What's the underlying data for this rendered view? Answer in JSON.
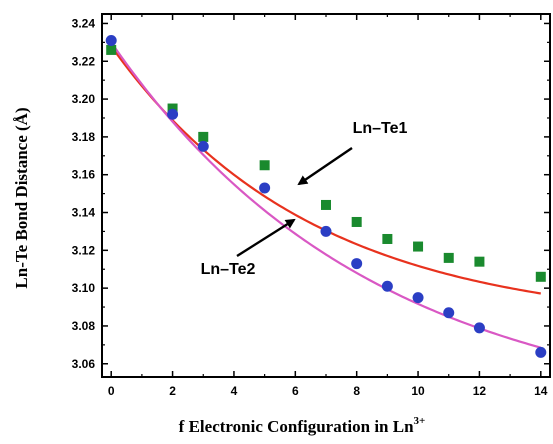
{
  "chart_data": {
    "type": "scatter",
    "title": "",
    "xlabel": "f Electronic Configuration in Ln",
    "xlabel_sup": "3+",
    "ylabel": "Ln-Te Bond Distance (Å)",
    "xlim": [
      -0.3,
      14.3
    ],
    "ylim": [
      3.053,
      3.245
    ],
    "xticks": [
      0,
      2,
      4,
      6,
      8,
      10,
      12,
      14
    ],
    "xtick_labels": [
      "0",
      "2",
      "4",
      "6",
      "8",
      "10",
      "12",
      "14"
    ],
    "yticks": [
      3.06,
      3.08,
      3.1,
      3.12,
      3.14,
      3.16,
      3.18,
      3.2,
      3.22,
      3.24
    ],
    "ytick_labels": [
      "3.06",
      "3.08",
      "3.10",
      "3.12",
      "3.14",
      "3.16",
      "3.18",
      "3.20",
      "3.22",
      "3.24"
    ],
    "grid": false,
    "series": [
      {
        "name": "Ln–Te1",
        "marker": "square",
        "marker_color": "#1a8a2e",
        "fit_color": "#e8321e",
        "x": [
          0,
          2,
          3,
          5,
          7,
          8,
          9,
          10,
          11,
          12,
          14
        ],
        "y": [
          3.226,
          3.195,
          3.18,
          3.165,
          3.144,
          3.135,
          3.126,
          3.122,
          3.116,
          3.114,
          3.106
        ],
        "fit": {
          "type": "exp_decay",
          "y0": 3.08,
          "A": 0.148,
          "t": 6.5
        }
      },
      {
        "name": "Ln–Te2",
        "marker": "circle",
        "marker_color": "#2b3ec4",
        "fit_color": "#d958c4",
        "x": [
          0,
          2,
          3,
          5,
          7,
          8,
          9,
          10,
          11,
          12,
          14
        ],
        "y": [
          3.231,
          3.192,
          3.175,
          3.153,
          3.13,
          3.113,
          3.101,
          3.095,
          3.087,
          3.079,
          3.066
        ],
        "fit": {
          "type": "exp_decay",
          "y0": 3.03,
          "A": 0.2,
          "t": 8.5
        }
      }
    ],
    "annotations": [
      {
        "text": "Ln–Te1",
        "target_series": 0
      },
      {
        "text": "Ln–Te2",
        "target_series": 1
      }
    ]
  }
}
